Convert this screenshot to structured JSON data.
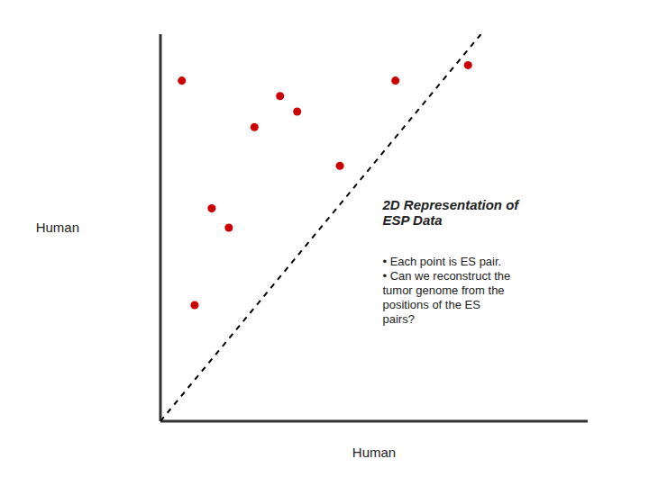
{
  "chart_data": {
    "type": "scatter",
    "title": "2D Representation of\nESP Data",
    "annotation": "• Each point is ES pair.\n• Can we reconstruct the\ntumor genome from the\npositions of the ES\npairs?",
    "xlabel": "Human",
    "ylabel": "Human",
    "xlim": [
      0,
      1
    ],
    "ylim": [
      0,
      1
    ],
    "tick_labels": false,
    "grid": false,
    "series": [
      {
        "type": "scatter",
        "marker": "circle",
        "color": "#cc0000",
        "x": [
          0.05,
          0.22,
          0.28,
          0.32,
          0.42,
          0.12,
          0.16,
          0.08,
          0.55,
          0.72
        ],
        "values": [
          0.88,
          0.76,
          0.84,
          0.8,
          0.66,
          0.55,
          0.5,
          0.3,
          0.88,
          0.92
        ]
      },
      {
        "type": "line",
        "line_style": "dashed",
        "color": "black",
        "x": [
          0.0,
          0.75
        ],
        "values": [
          0.0,
          1.0
        ]
      }
    ]
  }
}
